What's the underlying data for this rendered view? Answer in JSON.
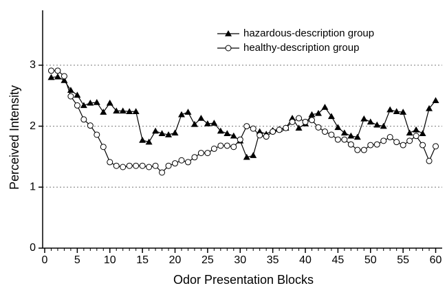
{
  "chart_data": {
    "type": "line",
    "xlabel": "Odor Presentation Blocks",
    "ylabel": "Perceived Intensity",
    "x": [
      1,
      2,
      3,
      4,
      5,
      6,
      7,
      8,
      9,
      10,
      11,
      12,
      13,
      14,
      15,
      16,
      17,
      18,
      19,
      20,
      21,
      22,
      23,
      24,
      25,
      26,
      27,
      28,
      29,
      30,
      31,
      32,
      33,
      34,
      35,
      36,
      37,
      38,
      39,
      40,
      41,
      42,
      43,
      44,
      45,
      46,
      47,
      48,
      49,
      50,
      51,
      52,
      53,
      54,
      55,
      56,
      57,
      58,
      59,
      60
    ],
    "series": [
      {
        "name": "hazardous-description group",
        "color": "#000000",
        "marker": "triangle",
        "values": [
          2.8,
          2.81,
          2.75,
          2.59,
          2.51,
          2.34,
          2.38,
          2.39,
          2.23,
          2.38,
          2.25,
          2.25,
          2.24,
          2.24,
          1.77,
          1.74,
          1.92,
          1.88,
          1.86,
          1.89,
          2.19,
          2.23,
          2.03,
          2.13,
          2.04,
          2.05,
          1.92,
          1.88,
          1.84,
          1.76,
          1.49,
          1.52,
          1.91,
          1.87,
          1.93,
          1.95,
          1.97,
          2.13,
          1.97,
          2.04,
          2.19,
          2.21,
          2.31,
          2.16,
          1.98,
          1.89,
          1.84,
          1.82,
          2.12,
          2.07,
          2.02,
          2.0,
          2.27,
          2.24,
          2.23,
          1.89,
          1.94,
          1.88,
          2.29,
          2.42
        ]
      },
      {
        "name": "healthy-description group",
        "color": "#000000",
        "marker": "circle",
        "values": [
          2.91,
          2.91,
          2.82,
          2.49,
          2.34,
          2.11,
          2.01,
          1.86,
          1.66,
          1.41,
          1.35,
          1.33,
          1.35,
          1.35,
          1.35,
          1.33,
          1.35,
          1.24,
          1.35,
          1.39,
          1.44,
          1.41,
          1.49,
          1.56,
          1.56,
          1.63,
          1.68,
          1.68,
          1.66,
          1.78,
          2.0,
          1.96,
          1.85,
          1.83,
          1.91,
          1.94,
          1.97,
          2.07,
          2.13,
          2.07,
          2.1,
          1.98,
          1.91,
          1.86,
          1.78,
          1.78,
          1.7,
          1.61,
          1.61,
          1.69,
          1.7,
          1.76,
          1.82,
          1.74,
          1.69,
          1.76,
          1.84,
          1.69,
          1.43,
          1.67
        ]
      }
    ],
    "xlim": [
      0,
      61
    ],
    "ylim": [
      0,
      3.9
    ],
    "xticks": [
      0,
      5,
      10,
      15,
      20,
      25,
      30,
      35,
      40,
      45,
      50,
      55,
      60
    ],
    "xticks_minor": [
      1,
      2,
      3,
      4,
      6,
      7,
      8,
      9,
      11,
      12,
      13,
      14,
      16,
      17,
      18,
      19,
      21,
      22,
      23,
      24,
      26,
      27,
      28,
      29,
      31,
      32,
      33,
      34,
      36,
      37,
      38,
      39,
      41,
      42,
      43,
      44,
      46,
      47,
      48,
      49,
      51,
      52,
      53,
      54,
      56,
      57,
      58,
      59
    ],
    "yticks": [
      0,
      1,
      2,
      3
    ],
    "grid": true,
    "legend": "top"
  }
}
